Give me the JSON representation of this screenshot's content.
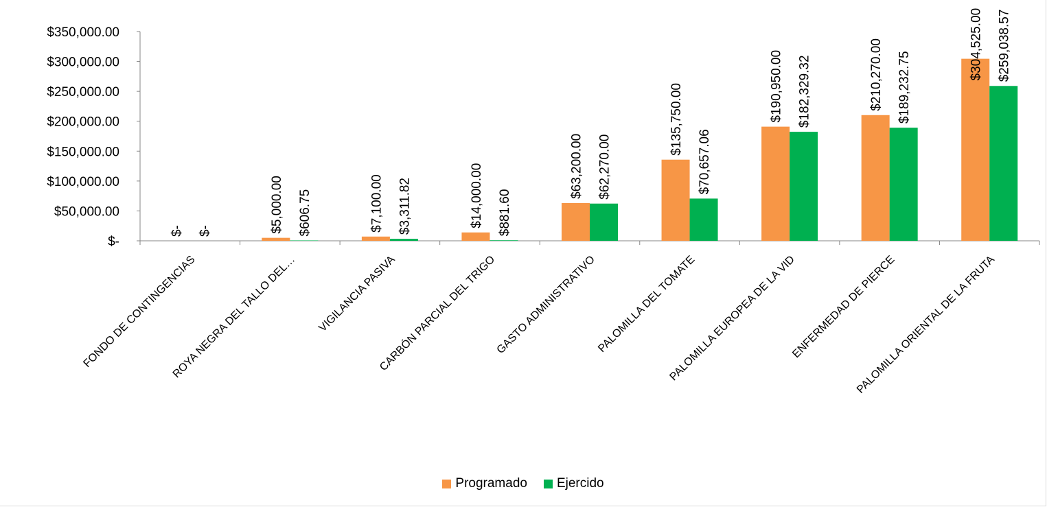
{
  "chart_data": {
    "type": "bar",
    "categories": [
      "FONDO DE CONTINGENCIAS",
      "ROYA NEGRA DEL TALLO DEL…",
      "VIGILANCIA PASIVA",
      "CARBÓN PARCIAL DEL TRIGO",
      "GASTO ADMINISTRATIVO",
      "PALOMILLA DEL TOMATE",
      "PALOMILLA EUROPEA DE LA VID",
      "ENFERMEDAD DE PIERCE",
      "PALOMILLA ORIENTAL DE LA FRUTA"
    ],
    "series": [
      {
        "name": "Programado",
        "color": "#F79646",
        "values": [
          0,
          5000,
          7100,
          14000,
          63200,
          135750,
          190950,
          210270,
          304525
        ],
        "labels": [
          "$-",
          "$5,000.00",
          "$7,100.00",
          "$14,000.00",
          "$63,200.00",
          "$135,750.00",
          "$190,950.00",
          "$210,270.00",
          "$304,525.00"
        ]
      },
      {
        "name": "Ejercido",
        "color": "#00B050",
        "values": [
          0,
          606.75,
          3311.82,
          881.6,
          62270,
          70657.06,
          182329.32,
          189232.75,
          259038.57
        ],
        "labels": [
          "$-",
          "$606.75",
          "$3,311.82",
          "$881.60",
          "$62,270.00",
          "$70,657.06",
          "$182,329.32",
          "$189,232.75",
          "$259,038.57"
        ]
      }
    ],
    "y_ticks": [
      0,
      50000,
      100000,
      150000,
      200000,
      250000,
      300000,
      350000
    ],
    "y_tick_labels": [
      "$-",
      "$50,000.00",
      "$100,000.00",
      "$150,000.00",
      "$200,000.00",
      "$250,000.00",
      "$300,000.00",
      "$350,000.00"
    ],
    "ylim": [
      0,
      350000
    ],
    "title": "",
    "xlabel": "",
    "ylabel": "",
    "grid": false,
    "legend_position": "bottom"
  },
  "legend": {
    "programado": "Programado",
    "ejercido": "Ejercido"
  }
}
